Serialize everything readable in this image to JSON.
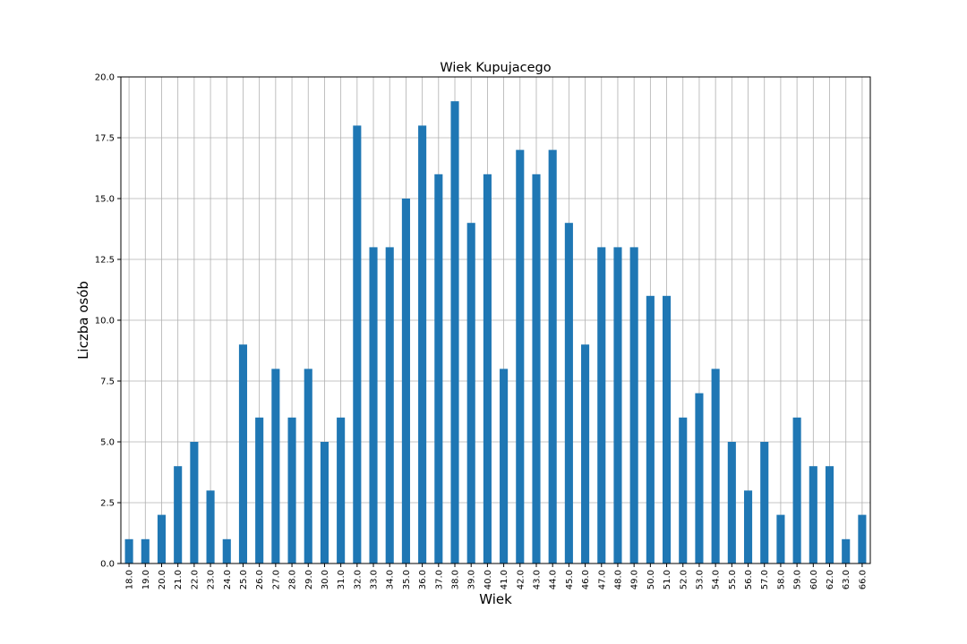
{
  "chart_data": {
    "type": "bar",
    "title": "Wiek Kupujacego",
    "xlabel": "Wiek",
    "ylabel": "Liczba osób",
    "categories": [
      "18.0",
      "19.0",
      "20.0",
      "21.0",
      "22.0",
      "23.0",
      "24.0",
      "25.0",
      "26.0",
      "27.0",
      "28.0",
      "29.0",
      "30.0",
      "31.0",
      "32.0",
      "33.0",
      "34.0",
      "35.0",
      "36.0",
      "37.0",
      "38.0",
      "39.0",
      "40.0",
      "41.0",
      "42.0",
      "43.0",
      "44.0",
      "45.0",
      "46.0",
      "47.0",
      "48.0",
      "49.0",
      "50.0",
      "51.0",
      "52.0",
      "53.0",
      "54.0",
      "55.0",
      "56.0",
      "57.0",
      "58.0",
      "59.0",
      "60.0",
      "62.0",
      "63.0",
      "66.0"
    ],
    "values": [
      1,
      1,
      2,
      4,
      5,
      3,
      1,
      9,
      6,
      8,
      6,
      8,
      5,
      6,
      18,
      13,
      13,
      15,
      18,
      16,
      19,
      14,
      16,
      8,
      17,
      16,
      17,
      14,
      9,
      13,
      13,
      13,
      11,
      11,
      6,
      7,
      8,
      5,
      3,
      5,
      2,
      6,
      4,
      4,
      1,
      2
    ],
    "ylim": [
      0,
      20
    ],
    "yticks": [
      "0.0",
      "2.5",
      "5.0",
      "7.5",
      "10.0",
      "12.5",
      "15.0",
      "17.5",
      "20.0"
    ],
    "grid": true,
    "bar_color": "#1f77b4"
  }
}
